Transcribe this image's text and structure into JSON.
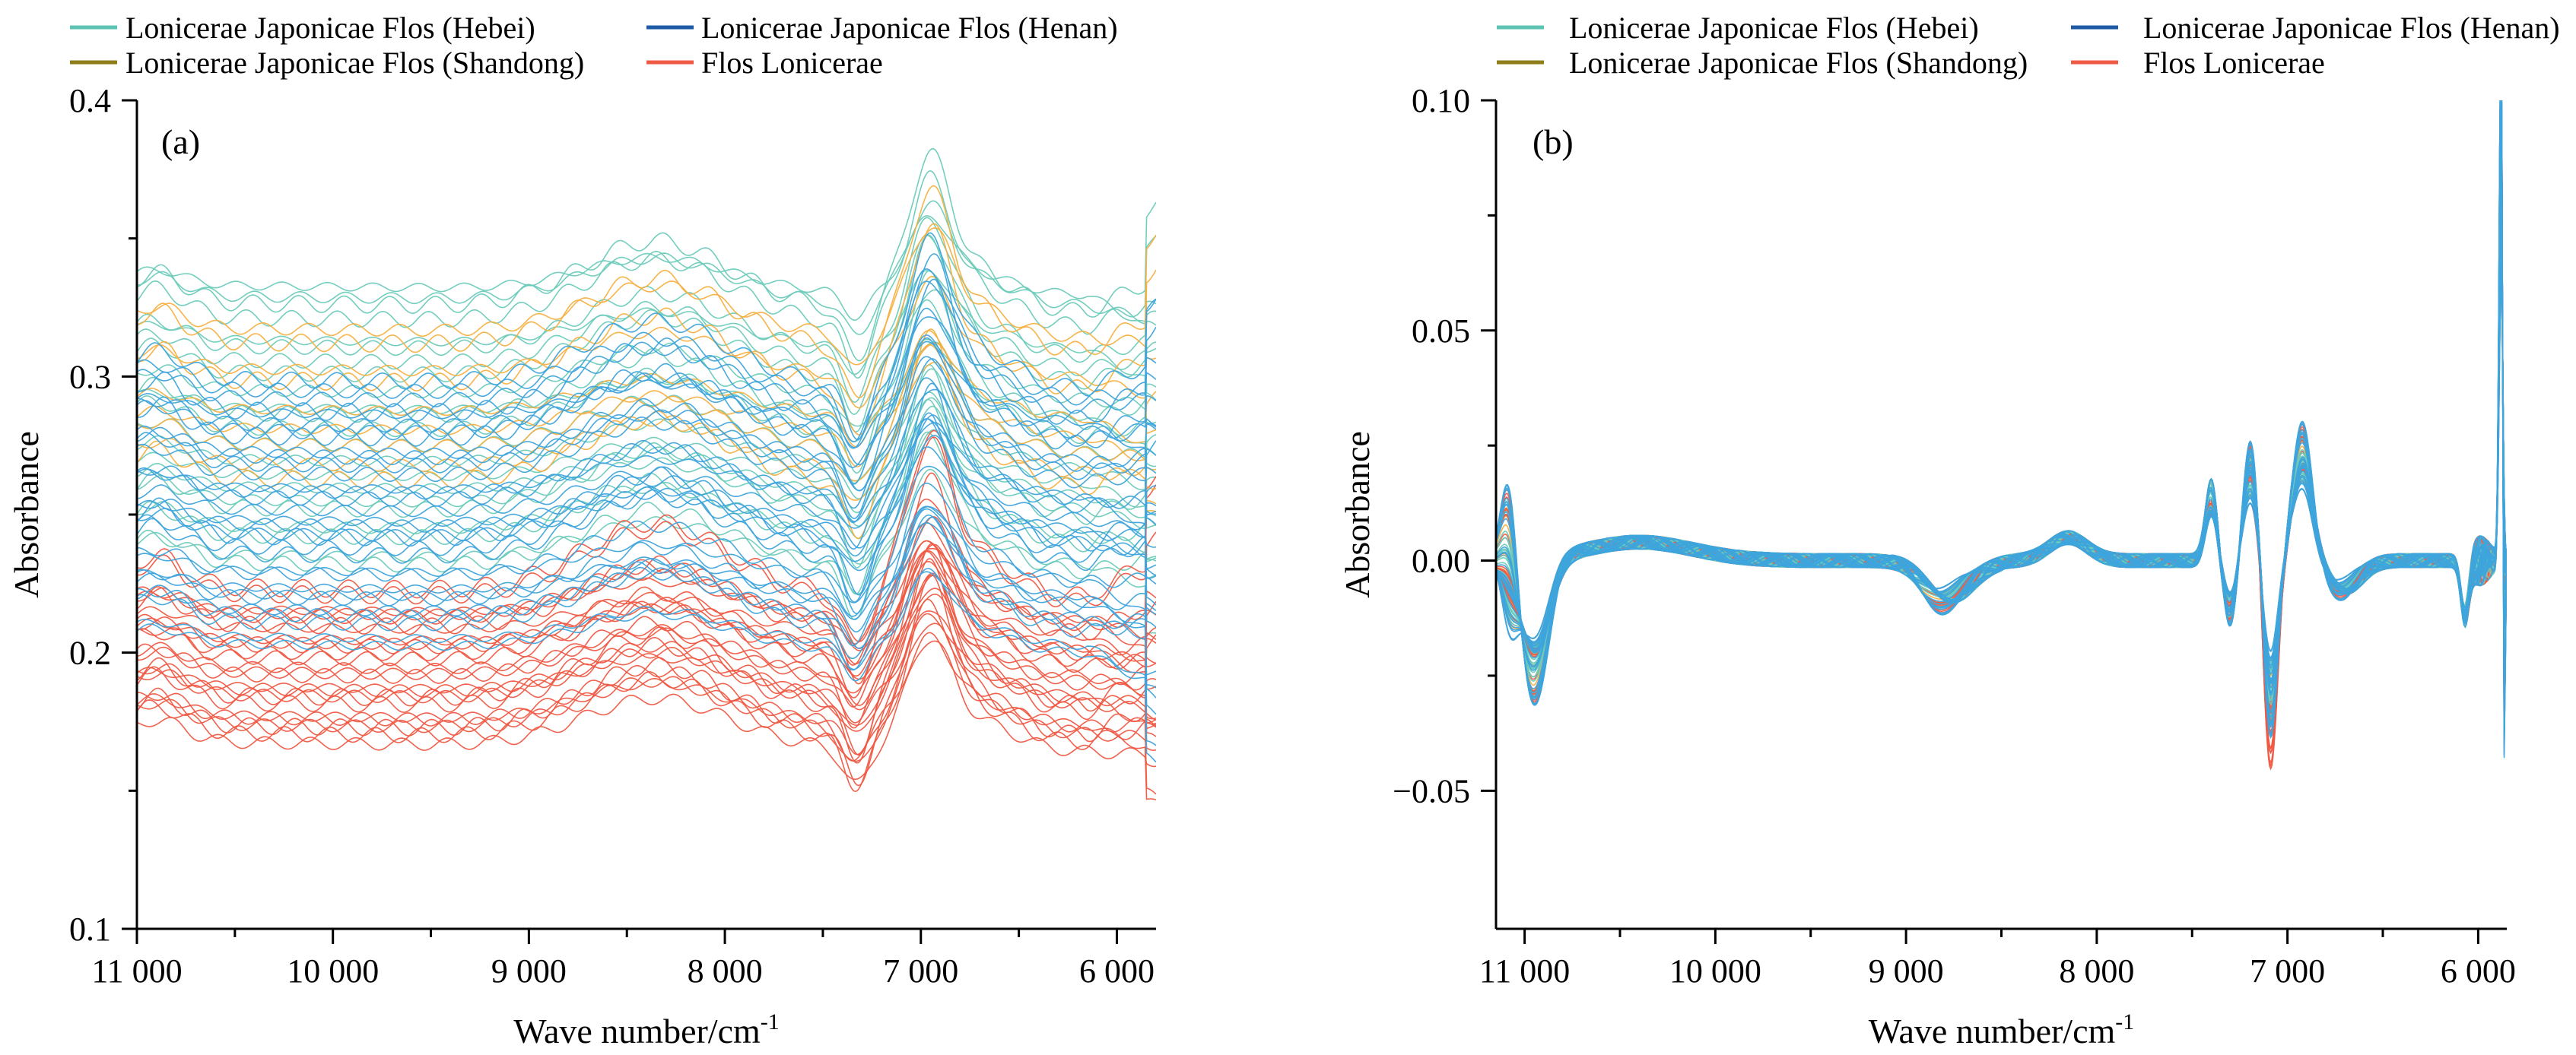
{
  "chart_data": [
    {
      "type": "line",
      "panel_label": "(a)",
      "xlabel": "Wave number/cm",
      "xlabel_sup": "-1",
      "ylabel": "Absorbance",
      "xlim": [
        11000,
        5800
      ],
      "ylim": [
        0.1,
        0.4
      ],
      "x_ticks": [
        11000,
        10000,
        9000,
        8000,
        7000,
        6000
      ],
      "x_tick_labels": [
        "11 000",
        "10 000",
        "9 000",
        "8 000",
        "7 000",
        "6 000"
      ],
      "y_ticks": [
        0.1,
        0.2,
        0.3,
        0.4
      ],
      "y_tick_labels": [
        "0.1",
        "0.2",
        "0.3",
        "0.4"
      ],
      "grid": false,
      "legend_placement": "top",
      "legend": [
        {
          "name": "Lonicerae Japonicae Flos (Hebei)",
          "color": "#5dc4b4"
        },
        {
          "name": "Lonicerae Japonicae Flos (Henan)",
          "color": "#1f5aa6"
        },
        {
          "name": "Lonicerae Japonicae Flos (Shandong)",
          "color": "#8f7d1a"
        },
        {
          "name": "Flos Lonicerae",
          "color": "#ef5a45"
        }
      ],
      "series_groups": [
        {
          "name": "Lonicerae Japonicae Flos (Hebei)",
          "color": "#6ccbbb",
          "count": 22,
          "base_start": 0.232,
          "base_end": 0.335
        },
        {
          "name": "Flos Lonicerae",
          "color": "#ef5a45",
          "count": 26,
          "base_start": 0.168,
          "base_end": 0.222
        },
        {
          "name": "Lonicerae Japonicae Flos (Shandong)",
          "color": "#f5b041",
          "count": 9,
          "base_start": 0.262,
          "base_end": 0.318
        },
        {
          "name": "Lonicerae Japonicae Flos (Henan)",
          "color": "#3ea4dc",
          "count": 32,
          "base_start": 0.205,
          "base_end": 0.298
        }
      ]
    },
    {
      "type": "line",
      "panel_label": "(b)",
      "xlabel": "Wave number/cm",
      "xlabel_sup": "-1",
      "ylabel": "Absorbance",
      "xlim": [
        11150,
        5850
      ],
      "ylim": [
        -0.08,
        0.1
      ],
      "x_ticks": [
        11000,
        10000,
        9000,
        8000,
        7000,
        6000
      ],
      "x_tick_labels": [
        "11 000",
        "10 000",
        "9 000",
        "8 000",
        "7 000",
        "6 000"
      ],
      "y_ticks": [
        -0.05,
        0.0,
        0.05,
        0.1
      ],
      "y_tick_labels": [
        "−0.05",
        "0.00",
        "0.05",
        "0.10"
      ],
      "grid": false,
      "legend_placement": "top",
      "legend": [
        {
          "name": "Lonicerae Japonicae Flos  (Hebei)",
          "color": "#5dc4b4"
        },
        {
          "name": "Lonicerae Japonicae Flos (Henan)",
          "color": "#1f5aa6"
        },
        {
          "name": "Lonicerae Japonicae Flos  (Shandong)",
          "color": "#8f7d1a"
        },
        {
          "name": "Flos Lonicerae",
          "color": "#ef5a45"
        }
      ],
      "series_groups": [
        {
          "name": "Lonicerae Japonicae Flos (Shandong)",
          "color": "#f5b041",
          "count": 10
        },
        {
          "name": "Flos Lonicerae",
          "color": "#ef5a45",
          "count": 24
        },
        {
          "name": "Lonicerae Japonicae Flos (Hebei)",
          "color": "#6ccbbb",
          "count": 22
        },
        {
          "name": "Lonicerae Japonicae Flos (Henan)",
          "color": "#3ea4dc",
          "count": 30
        }
      ]
    }
  ]
}
